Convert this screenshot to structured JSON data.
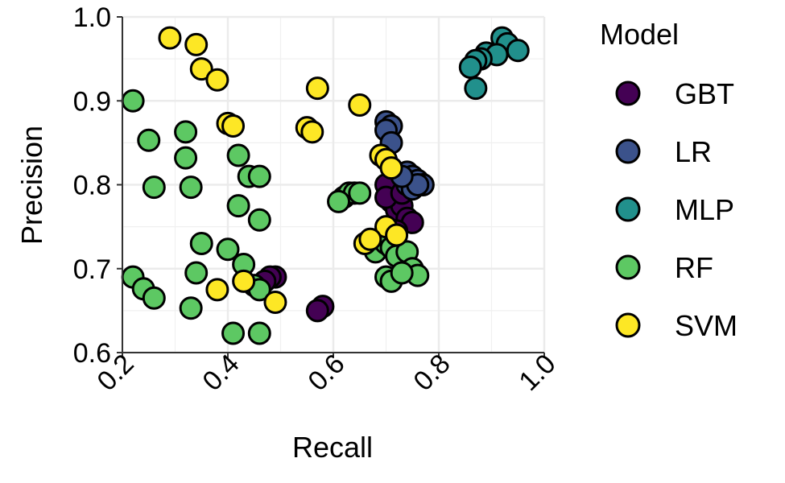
{
  "chart_data": {
    "type": "scatter",
    "title": "",
    "xlabel": "Recall",
    "ylabel": "Precision",
    "xlim": [
      0.2,
      1.0
    ],
    "ylim": [
      0.6,
      1.0
    ],
    "x_ticks": [
      "0.2",
      "0.4",
      "0.6",
      "0.8",
      "1.0"
    ],
    "y_ticks": [
      "0.6",
      "0.7",
      "0.8",
      "0.9",
      "1.0"
    ],
    "grid": true,
    "legend": {
      "title": "Model",
      "position": "right"
    },
    "series": [
      {
        "name": "GBT",
        "color": "#440154",
        "x": [
          0.71,
          0.7,
          0.71,
          0.72,
          0.73,
          0.74,
          0.75,
          0.72,
          0.7,
          0.73,
          0.49,
          0.48,
          0.47,
          0.58,
          0.57
        ],
        "y": [
          0.805,
          0.8,
          0.78,
          0.77,
          0.775,
          0.76,
          0.755,
          0.745,
          0.785,
          0.79,
          0.69,
          0.69,
          0.685,
          0.655,
          0.65
        ]
      },
      {
        "name": "LR",
        "color": "#3B528B",
        "x": [
          0.7,
          0.71,
          0.7,
          0.71,
          0.74,
          0.75,
          0.76,
          0.77,
          0.74,
          0.75,
          0.76,
          0.73
        ],
        "y": [
          0.875,
          0.87,
          0.865,
          0.85,
          0.815,
          0.81,
          0.805,
          0.8,
          0.8,
          0.795,
          0.8,
          0.81
        ]
      },
      {
        "name": "MLP",
        "color": "#21908C",
        "x": [
          0.92,
          0.93,
          0.95,
          0.89,
          0.91,
          0.88,
          0.87,
          0.86,
          0.87
        ],
        "y": [
          0.975,
          0.968,
          0.96,
          0.957,
          0.955,
          0.95,
          0.948,
          0.94,
          0.915
        ]
      },
      {
        "name": "RF",
        "color": "#5DC863",
        "x": [
          0.22,
          0.25,
          0.32,
          0.32,
          0.33,
          0.26,
          0.42,
          0.44,
          0.46,
          0.42,
          0.46,
          0.35,
          0.4,
          0.43,
          0.34,
          0.33,
          0.45,
          0.46,
          0.41,
          0.46,
          0.22,
          0.24,
          0.26,
          0.62,
          0.63,
          0.64,
          0.61,
          0.65,
          0.67,
          0.68,
          0.69,
          0.7,
          0.71,
          0.72,
          0.74,
          0.75,
          0.76,
          0.7,
          0.71,
          0.73
        ],
        "y": [
          0.9,
          0.853,
          0.863,
          0.832,
          0.797,
          0.797,
          0.835,
          0.81,
          0.81,
          0.775,
          0.758,
          0.73,
          0.723,
          0.705,
          0.695,
          0.653,
          0.68,
          0.675,
          0.623,
          0.623,
          0.69,
          0.676,
          0.665,
          0.785,
          0.79,
          0.79,
          0.78,
          0.79,
          0.73,
          0.72,
          0.735,
          0.73,
          0.725,
          0.715,
          0.72,
          0.7,
          0.692,
          0.69,
          0.685,
          0.695
        ]
      },
      {
        "name": "SVM",
        "color": "#FDE725",
        "x": [
          0.29,
          0.34,
          0.35,
          0.38,
          0.57,
          0.65,
          0.4,
          0.41,
          0.55,
          0.56,
          0.69,
          0.7,
          0.71,
          0.7,
          0.66,
          0.67,
          0.72,
          0.38,
          0.43,
          0.49
        ],
        "y": [
          0.975,
          0.967,
          0.938,
          0.925,
          0.915,
          0.895,
          0.873,
          0.87,
          0.868,
          0.863,
          0.835,
          0.83,
          0.82,
          0.75,
          0.73,
          0.735,
          0.74,
          0.675,
          0.685,
          0.66
        ]
      }
    ]
  }
}
